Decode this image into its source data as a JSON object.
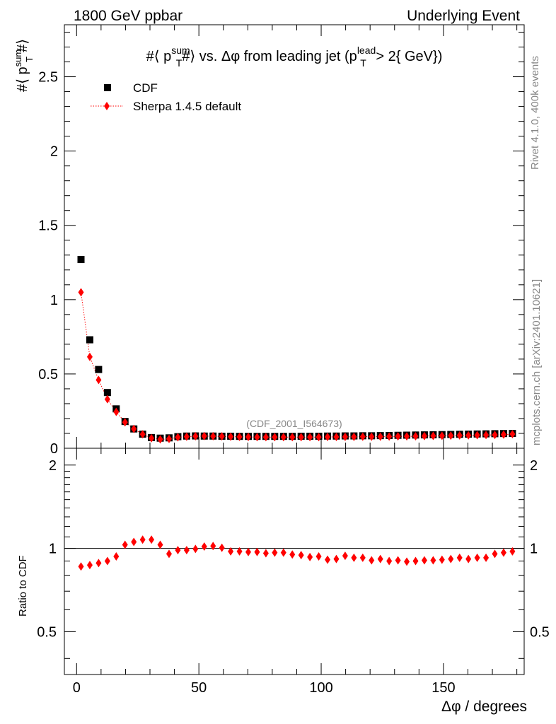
{
  "header": {
    "left": "1800 GeV ppbar",
    "right": "Underlying Event"
  },
  "title": {
    "part1": "#⟨ p",
    "part1_sup": "sum",
    "part1_sub": "T",
    "part2": "#⟩ vs. Δφ from leading jet  (p",
    "part2_sup": "lead",
    "part2_sub": "T",
    "part3": " > 2{ GeV})"
  },
  "side_labels": {
    "rivet": "Rivet 4.1.0,  400k events",
    "mcplots": "mcplots.cern.ch [arXiv:2401.10621]"
  },
  "analysis_id": "(CDF_2001_I564673)",
  "legend": {
    "data_label": "CDF",
    "mc_label": "Sherpa 1.4.5 default"
  },
  "colors": {
    "data": "#000000",
    "mc": "#ff0000",
    "watermark": "#888888"
  },
  "chart_data": [
    {
      "type": "scatter",
      "panel": "main",
      "title": "#⟨ p_T^sum #⟩ vs. Δφ from leading jet (p_T^lead > 2{ GeV})",
      "xlabel": "Δφ / degrees",
      "ylabel": "#⟨ p_T^sum #⟩",
      "ylabel_parts": {
        "base": "#⟨ p",
        "sup": "sum",
        "sub": "T",
        "tail": "#⟩"
      },
      "xlim": [
        -5,
        183
      ],
      "ylim": [
        0,
        2.85
      ],
      "yticks": [
        0,
        0.5,
        1,
        1.5,
        2,
        2.5
      ],
      "ytick_labels": [
        "0",
        "0.5",
        "1",
        "1.5",
        "2",
        "2.5"
      ],
      "x": [
        1.8,
        5.4,
        9.0,
        12.6,
        16.2,
        19.8,
        23.4,
        27.0,
        30.6,
        34.2,
        37.8,
        41.4,
        45.0,
        48.6,
        52.2,
        55.8,
        59.4,
        63.0,
        66.6,
        70.2,
        73.8,
        77.4,
        81.0,
        84.6,
        88.2,
        91.8,
        95.4,
        99.0,
        102.6,
        106.2,
        109.8,
        113.4,
        117.0,
        120.6,
        124.2,
        127.8,
        131.4,
        135.0,
        138.6,
        142.2,
        145.8,
        149.4,
        153.0,
        156.6,
        160.2,
        163.8,
        167.4,
        171.0,
        174.6,
        178.2
      ],
      "series": [
        {
          "name": "CDF",
          "marker": "square",
          "values": [
            1.27,
            0.73,
            0.53,
            0.375,
            0.265,
            0.18,
            0.13,
            0.095,
            0.072,
            0.068,
            0.07,
            0.078,
            0.082,
            0.083,
            0.082,
            0.082,
            0.081,
            0.081,
            0.08,
            0.08,
            0.08,
            0.08,
            0.08,
            0.08,
            0.08,
            0.081,
            0.081,
            0.081,
            0.082,
            0.082,
            0.083,
            0.083,
            0.084,
            0.084,
            0.085,
            0.086,
            0.087,
            0.088,
            0.089,
            0.09,
            0.091,
            0.092,
            0.093,
            0.094,
            0.095,
            0.096,
            0.097,
            0.098,
            0.099,
            0.1
          ]
        },
        {
          "name": "Sherpa 1.4.5 default",
          "marker": "diamond",
          "line": "dotted",
          "values": [
            1.05,
            0.615,
            0.46,
            0.33,
            0.245,
            0.175,
            0.13,
            0.094,
            0.068,
            0.06,
            0.063,
            0.074,
            0.078,
            0.081,
            0.082,
            0.081,
            0.08,
            0.078,
            0.077,
            0.076,
            0.075,
            0.075,
            0.075,
            0.075,
            0.075,
            0.075,
            0.075,
            0.075,
            0.076,
            0.076,
            0.077,
            0.077,
            0.078,
            0.078,
            0.078,
            0.079,
            0.08,
            0.08,
            0.081,
            0.082,
            0.083,
            0.084,
            0.085,
            0.086,
            0.087,
            0.088,
            0.089,
            0.09,
            0.092,
            0.095
          ]
        }
      ]
    },
    {
      "type": "scatter",
      "panel": "ratio",
      "xlabel": "Δφ / degrees",
      "ylabel": "Ratio to CDF",
      "xlim": [
        -5,
        183
      ],
      "ylim": [
        0.35,
        2.3
      ],
      "yscale": "log",
      "yticks": [
        0.5,
        1,
        2
      ],
      "ytick_labels": [
        "0.5",
        "1",
        "2"
      ],
      "xticks": [
        0,
        50,
        100,
        150
      ],
      "xtick_labels": [
        "0",
        "50",
        "100",
        "150"
      ],
      "reference_line": 1,
      "x": [
        1.8,
        5.4,
        9.0,
        12.6,
        16.2,
        19.8,
        23.4,
        27.0,
        30.6,
        34.2,
        37.8,
        41.4,
        45.0,
        48.6,
        52.2,
        55.8,
        59.4,
        63.0,
        66.6,
        70.2,
        73.8,
        77.4,
        81.0,
        84.6,
        88.2,
        91.8,
        95.4,
        99.0,
        102.6,
        106.2,
        109.8,
        113.4,
        117.0,
        120.6,
        124.2,
        127.8,
        131.4,
        135.0,
        138.6,
        142.2,
        145.8,
        149.4,
        153.0,
        156.6,
        160.2,
        163.8,
        167.4,
        171.0,
        174.6,
        178.2
      ],
      "series": [
        {
          "name": "Sherpa 1.4.5 default / CDF",
          "marker": "diamond",
          "values": [
            0.86,
            0.87,
            0.885,
            0.9,
            0.935,
            1.03,
            1.055,
            1.075,
            1.075,
            1.03,
            0.955,
            0.985,
            0.985,
            0.995,
            1.015,
            1.02,
            1.005,
            0.975,
            0.975,
            0.97,
            0.97,
            0.96,
            0.965,
            0.965,
            0.95,
            0.945,
            0.93,
            0.935,
            0.91,
            0.915,
            0.94,
            0.925,
            0.925,
            0.905,
            0.915,
            0.9,
            0.905,
            0.895,
            0.9,
            0.905,
            0.905,
            0.91,
            0.915,
            0.925,
            0.915,
            0.925,
            0.925,
            0.955,
            0.965,
            0.975
          ]
        }
      ]
    }
  ]
}
